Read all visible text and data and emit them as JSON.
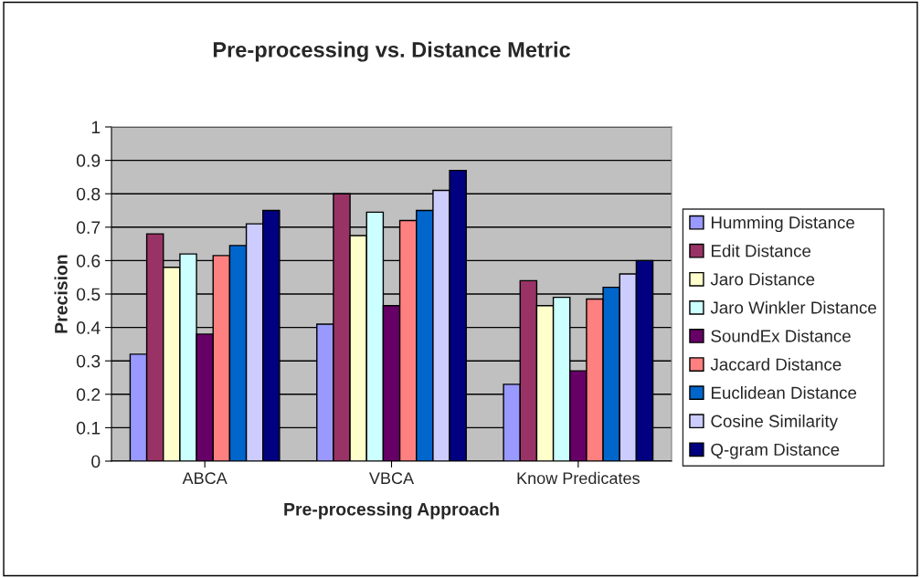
{
  "chart_data": {
    "type": "bar",
    "title": "Pre-processing vs. Distance Metric",
    "xlabel": "Pre-processing Approach",
    "ylabel": "Precision",
    "categories": [
      "ABCA",
      "VBCA",
      "Know Predicates"
    ],
    "series": [
      {
        "name": "Humming Distance",
        "color": "#9999ff",
        "values": [
          0.32,
          0.41,
          0.23
        ]
      },
      {
        "name": "Edit Distance",
        "color": "#993366",
        "values": [
          0.68,
          0.8,
          0.54
        ]
      },
      {
        "name": "Jaro Distance",
        "color": "#ffffcc",
        "values": [
          0.58,
          0.675,
          0.465
        ]
      },
      {
        "name": "Jaro Winkler Distance",
        "color": "#ccffff",
        "values": [
          0.62,
          0.745,
          0.49
        ]
      },
      {
        "name": "SoundEx Distance",
        "color": "#660066",
        "values": [
          0.38,
          0.465,
          0.27
        ]
      },
      {
        "name": "Jaccard Distance",
        "color": "#ff8080",
        "values": [
          0.615,
          0.72,
          0.485
        ]
      },
      {
        "name": "Euclidean Distance",
        "color": "#0066cc",
        "values": [
          0.645,
          0.75,
          0.52
        ]
      },
      {
        "name": "Cosine Similarity",
        "color": "#ccccff",
        "values": [
          0.71,
          0.81,
          0.56
        ]
      },
      {
        "name": "Q-gram Distance",
        "color": "#000080",
        "values": [
          0.75,
          0.87,
          0.6
        ]
      }
    ],
    "ylim": [
      0,
      1
    ],
    "yticks": [
      0,
      0.1,
      0.2,
      0.3,
      0.4,
      0.5,
      0.6,
      0.7,
      0.8,
      0.9,
      1
    ],
    "grid": "y",
    "legend": "right"
  }
}
